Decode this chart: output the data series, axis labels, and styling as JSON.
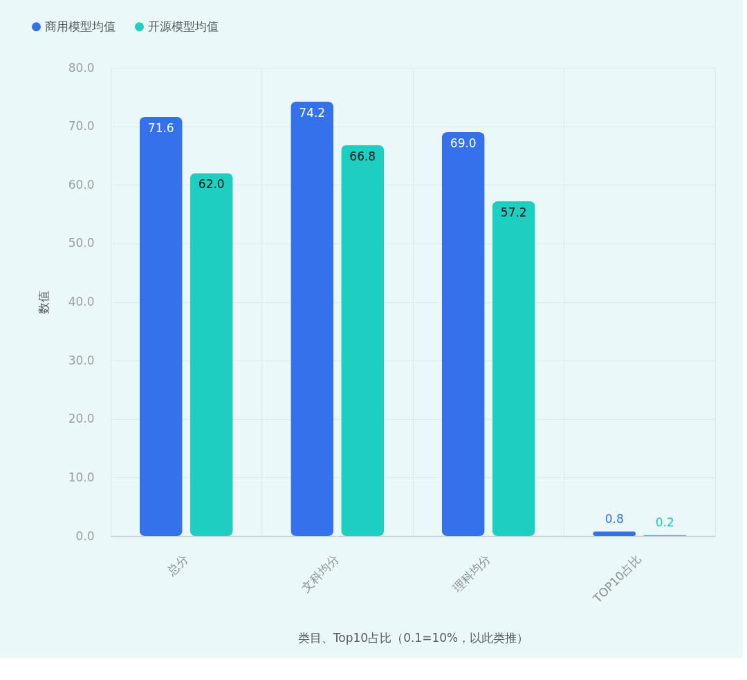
{
  "chart_data": {
    "type": "bar",
    "categories": [
      "总分",
      "文科均分",
      "理科均分",
      "TOP10占比"
    ],
    "series": [
      {
        "name": "商用模型均值",
        "color": "#3471eb",
        "values": [
          71.6,
          74.2,
          69.0,
          0.8
        ],
        "value_labels": [
          "71.6",
          "74.2",
          "69.0",
          "0.8"
        ]
      },
      {
        "name": "开源模型均值",
        "color": "#1ccfc0",
        "values": [
          62.0,
          66.8,
          57.2,
          0.2
        ],
        "value_labels": [
          "62.0",
          "66.8",
          "57.2",
          "0.2"
        ]
      }
    ],
    "xlabel": "类目、Top10占比（0.1=10%，以此类推）",
    "ylabel": "数值",
    "ylim": [
      0,
      80
    ],
    "yticks": [
      {
        "value": 0,
        "label": "0.0"
      },
      {
        "value": 10,
        "label": "10.0"
      },
      {
        "value": 20,
        "label": "20.0"
      },
      {
        "value": 30,
        "label": "30.0"
      },
      {
        "value": 40,
        "label": "40.0"
      },
      {
        "value": 50,
        "label": "50.0"
      },
      {
        "value": 60,
        "label": "60.0"
      },
      {
        "value": 70,
        "label": "70.0"
      },
      {
        "value": 80,
        "label": "80.0"
      }
    ],
    "grid": true,
    "legend": "top left"
  }
}
